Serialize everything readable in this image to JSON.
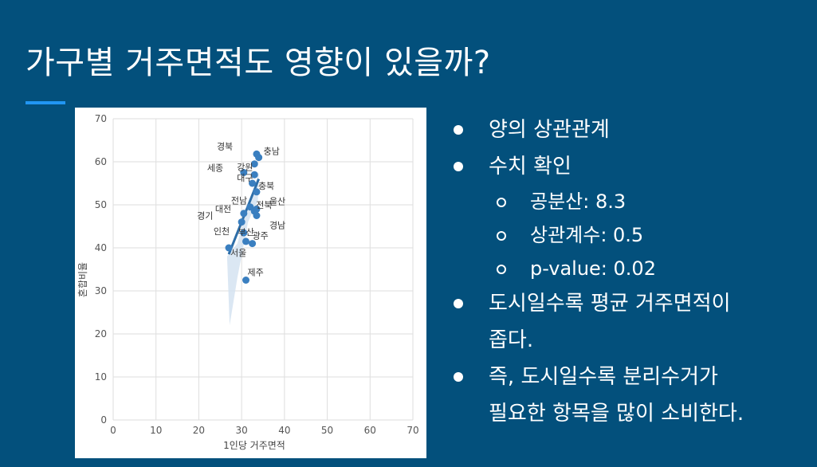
{
  "slide": {
    "title": "가구별 거주면적도 영향이 있을까?"
  },
  "bullets": [
    {
      "text": "양의 상관관계",
      "level": 1
    },
    {
      "text": "수치 확인",
      "level": 1
    },
    {
      "text": "공분산: 8.3",
      "level": 2
    },
    {
      "text": "상관계수: 0.5",
      "level": 2
    },
    {
      "text": "p-value: 0.02",
      "level": 2
    },
    {
      "text": "도시일수록 평균 거주면적이",
      "text2": "좁다.",
      "level": 1
    },
    {
      "text": "즉, 도시일수록 분리수거가",
      "text2": "필요한 항목을 많이 소비한다.",
      "level": 1
    }
  ],
  "chart_data": {
    "type": "scatter",
    "xlabel": "1인당 거주면적",
    "ylabel": "혼합비율",
    "xlim": [
      0,
      70
    ],
    "ylim": [
      0,
      70
    ],
    "xticks": [
      0,
      10,
      20,
      30,
      40,
      50,
      60,
      70
    ],
    "yticks": [
      0,
      10,
      20,
      30,
      40,
      50,
      60,
      70
    ],
    "grid": true,
    "point_color": "#3a7fc0",
    "band_color": "#d5e3f1",
    "points": [
      {
        "label": "경북",
        "x": 33.5,
        "y": 61.8
      },
      {
        "label": "충남",
        "x": 34.0,
        "y": 61.0
      },
      {
        "label": "강원",
        "x": 33.0,
        "y": 59.5
      },
      {
        "label": "세종",
        "x": 30.5,
        "y": 57.5
      },
      {
        "label": "대구",
        "x": 33.0,
        "y": 57.0
      },
      {
        "label": "",
        "x": 32.5,
        "y": 55.0
      },
      {
        "label": "충북",
        "x": 33.5,
        "y": 53.0
      },
      {
        "label": "전남",
        "x": 32.0,
        "y": 49.5
      },
      {
        "label": "울산",
        "x": 33.5,
        "y": 49.0
      },
      {
        "label": "전북",
        "x": 33.0,
        "y": 48.5
      },
      {
        "label": "대전",
        "x": 30.5,
        "y": 48.0
      },
      {
        "label": "경남",
        "x": 33.5,
        "y": 47.5
      },
      {
        "label": "경기",
        "x": 30.0,
        "y": 46.0
      },
      {
        "label": "인천",
        "x": 30.5,
        "y": 43.5
      },
      {
        "label": "광주",
        "x": 32.5,
        "y": 41.0
      },
      {
        "label": "부산",
        "x": 31.0,
        "y": 41.5
      },
      {
        "label": "서울",
        "x": 27.0,
        "y": 40.0
      },
      {
        "label": "제주",
        "x": 31.0,
        "y": 32.5
      }
    ],
    "trendline": {
      "x": [
        27,
        34
      ],
      "y": [
        38.5,
        56.0
      ]
    }
  }
}
